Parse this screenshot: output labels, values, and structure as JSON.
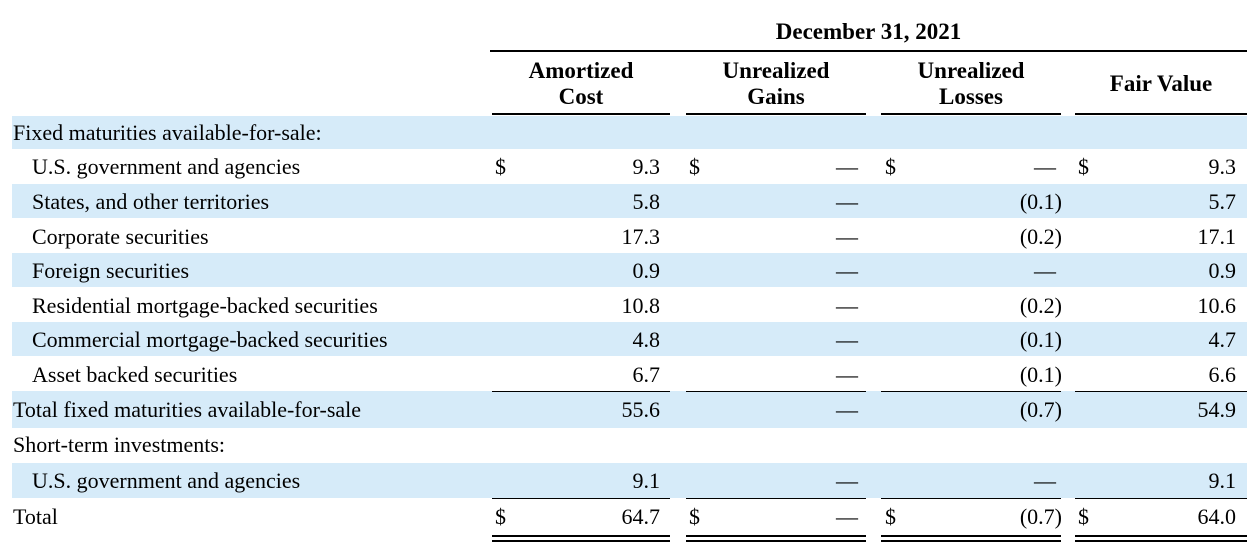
{
  "header": {
    "period": "December 31, 2021",
    "columns": [
      {
        "line1": "Amortized",
        "line2": "Cost"
      },
      {
        "line1": "Unrealized",
        "line2": "Gains"
      },
      {
        "line1": "Unrealized",
        "line2": "Losses"
      },
      {
        "line1": "Fair Value",
        "line2": ""
      }
    ]
  },
  "rows": [
    {
      "label": "Fixed maturities available-for-sale:",
      "indent": false,
      "section": true
    },
    {
      "label": "U.S. government and agencies",
      "indent": true,
      "dollar": true,
      "cost": "9.3",
      "gains": "—",
      "losses": "—",
      "fair": "9.3"
    },
    {
      "label": "States, and other territories",
      "indent": true,
      "cost": "5.8",
      "gains": "—",
      "losses": "(0.1)",
      "fair": "5.7"
    },
    {
      "label": "Corporate securities",
      "indent": true,
      "cost": "17.3",
      "gains": "—",
      "losses": "(0.2)",
      "fair": "17.1"
    },
    {
      "label": "Foreign securities",
      "indent": true,
      "cost": "0.9",
      "gains": "—",
      "losses": "—",
      "fair": "0.9"
    },
    {
      "label": "Residential mortgage-backed securities",
      "indent": true,
      "cost": "10.8",
      "gains": "—",
      "losses": "(0.2)",
      "fair": "10.6"
    },
    {
      "label": "Commercial mortgage-backed securities",
      "indent": true,
      "cost": "4.8",
      "gains": "—",
      "losses": "(0.1)",
      "fair": "4.7"
    },
    {
      "label": "Asset backed securities",
      "indent": true,
      "cost": "6.7",
      "gains": "—",
      "losses": "(0.1)",
      "fair": "6.6"
    },
    {
      "label": "Total fixed maturities available-for-sale",
      "indent": false,
      "cost": "55.6",
      "gains": "—",
      "losses": "(0.7)",
      "fair": "54.9"
    },
    {
      "label": "Short-term investments:",
      "indent": false,
      "section": true
    },
    {
      "label": "U.S. government and agencies",
      "indent": true,
      "cost": "9.1",
      "gains": "—",
      "losses": "—",
      "fair": "9.1"
    },
    {
      "label": "Total",
      "indent": false,
      "dollar": true,
      "cost": "64.7",
      "gains": "—",
      "losses": "(0.7)",
      "fair": "64.0"
    }
  ],
  "currency_symbol": "$"
}
